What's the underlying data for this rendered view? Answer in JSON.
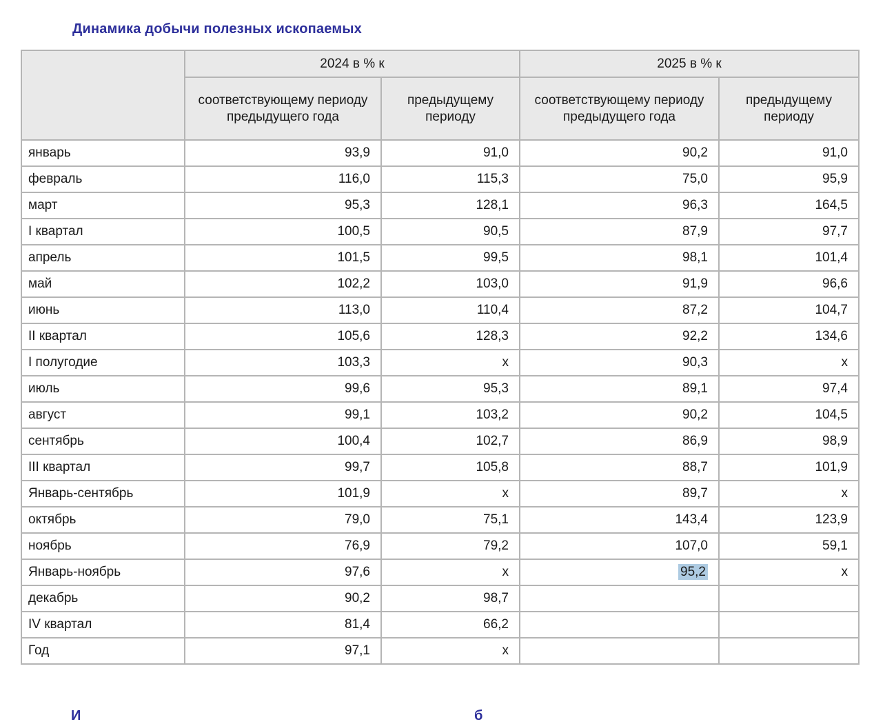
{
  "title": "Динамика добычи полезных ископаемых",
  "colors": {
    "accent_navy": "#2d2f9b",
    "header_bg": "#e9e9e9",
    "grid_line": "#b5b5b5",
    "highlight": "#aecbe2"
  },
  "table": {
    "groups": [
      "2024 в % к",
      "2025 в % к"
    ],
    "sub_headers": [
      "соответствующему периоду предыдущего года",
      "предыдущему периоду",
      "соответствующему периоду предыдущего года",
      "предыдущему периоду"
    ],
    "rows": [
      {
        "label": "январь",
        "values": [
          "93,9",
          "91,0",
          "90,2",
          "91,0"
        ]
      },
      {
        "label": "февраль",
        "values": [
          "116,0",
          "115,3",
          "75,0",
          "95,9"
        ]
      },
      {
        "label": "март",
        "values": [
          "95,3",
          "128,1",
          "96,3",
          "164,5"
        ]
      },
      {
        "label": "I квартал",
        "values": [
          "100,5",
          "90,5",
          "87,9",
          "97,7"
        ]
      },
      {
        "label": "апрель",
        "values": [
          "101,5",
          "99,5",
          "98,1",
          "101,4"
        ]
      },
      {
        "label": "май",
        "values": [
          "102,2",
          "103,0",
          "91,9",
          "96,6"
        ]
      },
      {
        "label": "июнь",
        "values": [
          "113,0",
          "110,4",
          "87,2",
          "104,7"
        ]
      },
      {
        "label": "II квартал",
        "values": [
          "105,6",
          "128,3",
          "92,2",
          "134,6"
        ]
      },
      {
        "label": "I полугодие",
        "values": [
          "103,3",
          "х",
          "90,3",
          "х"
        ]
      },
      {
        "label": "июль",
        "values": [
          "99,6",
          "95,3",
          "89,1",
          "97,4"
        ]
      },
      {
        "label": "август",
        "values": [
          "99,1",
          "103,2",
          "90,2",
          "104,5"
        ]
      },
      {
        "label": "сентябрь",
        "values": [
          "100,4",
          "102,7",
          "86,9",
          "98,9"
        ]
      },
      {
        "label": "III квартал",
        "values": [
          "99,7",
          "105,8",
          "88,7",
          "101,9"
        ]
      },
      {
        "label": "Январь-сентябрь",
        "values": [
          "101,9",
          "х",
          "89,7",
          "х"
        ]
      },
      {
        "label": "октябрь",
        "values": [
          "79,0",
          "75,1",
          "143,4",
          "123,9"
        ]
      },
      {
        "label": "ноябрь",
        "values": [
          "76,9",
          "79,2",
          "107,0",
          "59,1"
        ]
      },
      {
        "label": "Январь-ноябрь",
        "values": [
          "97,6",
          "х",
          "95,2",
          "х"
        ],
        "highlight_col": 2
      },
      {
        "label": "декабрь",
        "values": [
          "90,2",
          "98,7",
          "",
          ""
        ]
      },
      {
        "label": "IV квартал",
        "values": [
          "81,4",
          "66,2",
          "",
          ""
        ]
      },
      {
        "label": "Год",
        "values": [
          "97,1",
          "х",
          "",
          ""
        ]
      }
    ]
  },
  "footer_fragments": [
    "И",
    "б"
  ]
}
